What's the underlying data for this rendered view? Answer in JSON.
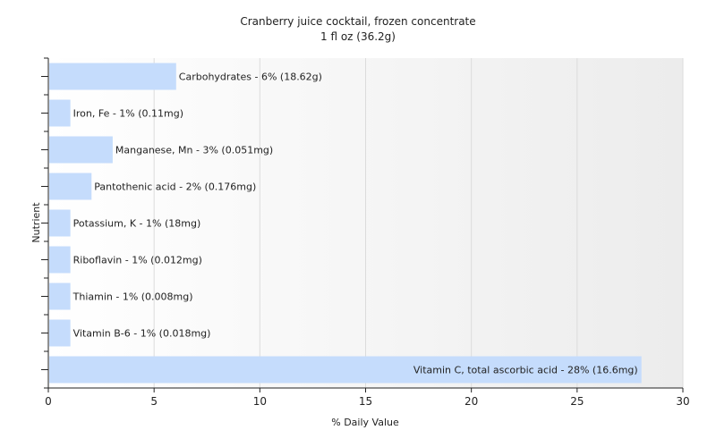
{
  "chart_data": {
    "type": "bar",
    "orientation": "horizontal",
    "title": "Cranberry juice cocktail, frozen concentrate",
    "subtitle": "1 fl oz (36.2g)",
    "xlabel": "% Daily Value",
    "ylabel": "Nutrient",
    "xlim": [
      0,
      30
    ],
    "xticks": [
      0,
      5,
      10,
      15,
      20,
      25,
      30
    ],
    "grid": true,
    "bar_color": "#c5dcfc",
    "categories": [
      "Carbohydrates",
      "Iron, Fe",
      "Manganese, Mn",
      "Pantothenic acid",
      "Potassium, K",
      "Riboflavin",
      "Thiamin",
      "Vitamin B-6",
      "Vitamin C, total ascorbic acid"
    ],
    "values": [
      6,
      1,
      3,
      2,
      1,
      1,
      1,
      1,
      28
    ],
    "data_labels": [
      "Carbohydrates - 6% (18.62g)",
      "Iron, Fe - 1% (0.11mg)",
      "Manganese, Mn - 3% (0.051mg)",
      "Pantothenic acid - 2% (0.176mg)",
      "Potassium, K - 1% (18mg)",
      "Riboflavin - 1% (0.012mg)",
      "Thiamin - 1% (0.008mg)",
      "Vitamin B-6 - 1% (0.018mg)",
      "Vitamin C, total ascorbic acid - 28% (16.6mg)"
    ]
  }
}
